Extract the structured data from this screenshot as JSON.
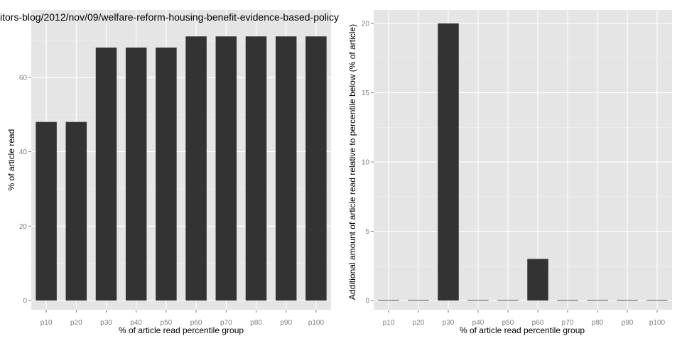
{
  "chart_data": [
    {
      "type": "bar",
      "title": "itors-blog/2012/nov/09/welfare-reform-housing-benefit-evidence-based-policy",
      "xlabel": "% of article read percentile group",
      "ylabel": "% of article read",
      "categories": [
        "p10",
        "p20",
        "p30",
        "p40",
        "p50",
        "p60",
        "p70",
        "p80",
        "p90",
        "p100"
      ],
      "values": [
        48,
        48,
        68,
        68,
        68,
        71,
        71,
        71,
        71,
        71
      ],
      "ylim": [
        0,
        72
      ],
      "yticks": [
        0,
        20,
        40,
        60
      ],
      "grid": true
    },
    {
      "type": "bar",
      "title": "",
      "xlabel": "% of article read percentile group",
      "ylabel": "Additional amount of article read relative to percentile below (% of article)",
      "categories": [
        "p10",
        "p20",
        "p30",
        "p40",
        "p50",
        "p60",
        "p70",
        "p80",
        "p90",
        "p100"
      ],
      "values": [
        0,
        0,
        20,
        0,
        0,
        3,
        0,
        0,
        0,
        0
      ],
      "ylim": [
        0,
        21
      ],
      "yticks": [
        0,
        5,
        10,
        15,
        20
      ],
      "grid": true
    }
  ]
}
